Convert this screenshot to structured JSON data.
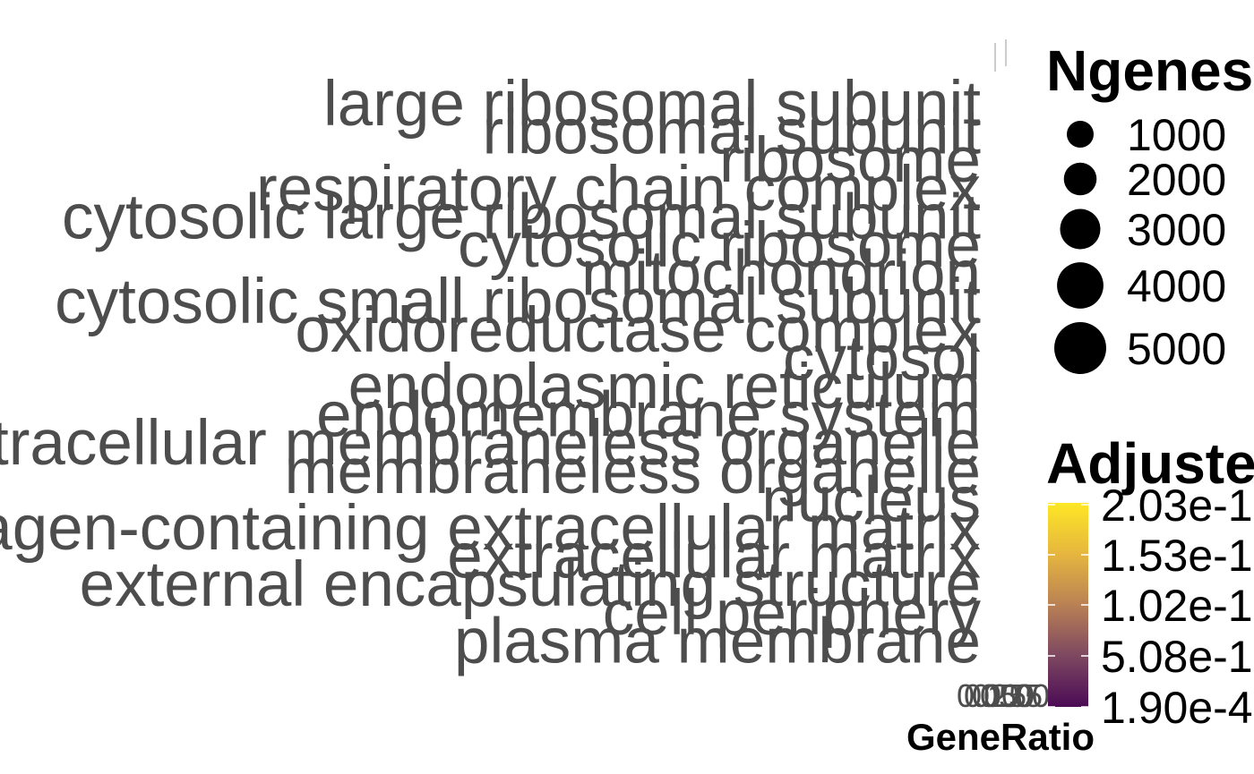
{
  "chart_data": {
    "type": "dot",
    "title": "",
    "xlabel": "GeneRatio",
    "ylabel": "",
    "categories": [
      "large ribosomal subunit",
      "ribosomal subunit",
      "ribosome",
      "respiratory chain complex",
      "cytosolic large ribosomal subunit",
      "cytosolic ribosome",
      "mitochondrion",
      "cytosolic small ribosomal subunit",
      "oxidoreductase complex",
      "cytosol",
      "endoplasmic reticulum",
      "endomembrane system",
      "intracellular membraneless organelle",
      "membraneless organelle",
      "nucleus",
      "collagen-containing extracellular matrix",
      "extracellular matrix",
      "external encapsulating structure",
      "cell periphery",
      "plasma membrane"
    ],
    "x_ticks": [
      "0.00",
      "0.25",
      "0.50",
      "0.75",
      "1.00"
    ],
    "size_legend": {
      "title": "Ngenes",
      "labels": [
        "1000",
        "2000",
        "3000",
        "4000",
        "5000"
      ],
      "values": [
        1000,
        2000,
        3000,
        4000,
        5000
      ]
    },
    "color_legend": {
      "title": "Adjusted",
      "labels": [
        "2.03e-1",
        "1.53e-1",
        "1.02e-1",
        "5.08e-1",
        "1.90e-4"
      ],
      "colors": [
        "#440154",
        "#3b528b",
        "#21908c",
        "#5dc863",
        "#fde725"
      ],
      "gradient": [
        "#fde725",
        "#e6b63f",
        "#b98154",
        "#7d4861",
        "#4b0b55"
      ]
    }
  }
}
